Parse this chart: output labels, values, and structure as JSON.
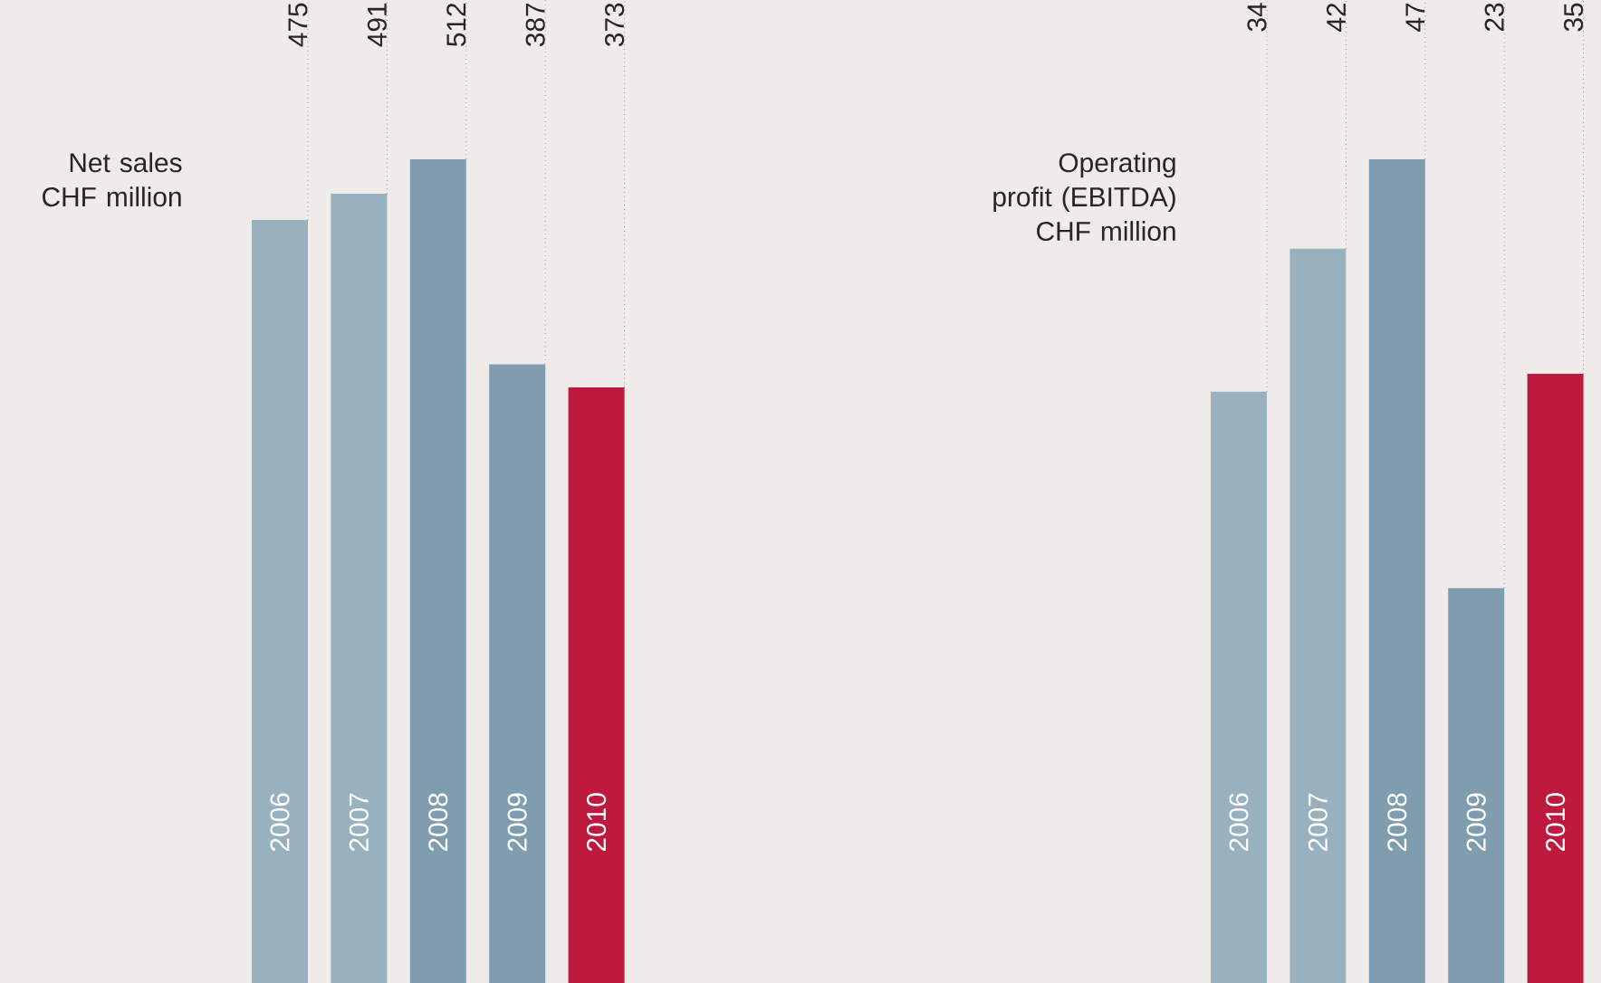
{
  "chart_data": [
    {
      "type": "bar",
      "title": "Net sales",
      "subtitle": "CHF million",
      "categories": [
        "2006",
        "2007",
        "2008",
        "2009",
        "2010"
      ],
      "values": [
        475,
        491,
        512,
        387,
        373
      ],
      "colors": [
        "#97b1be",
        "#97b1be",
        "#7f9dae",
        "#7f9dae",
        "#be1a3e"
      ],
      "data_labels": true
    },
    {
      "type": "bar",
      "title": "Operating profit (EBITDA)",
      "subtitle": "CHF million",
      "categories": [
        "2006",
        "2007",
        "2008",
        "2009",
        "2010"
      ],
      "values": [
        34,
        42,
        47,
        23,
        35
      ],
      "colors": [
        "#97b1be",
        "#97b1be",
        "#7f9dae",
        "#7f9dae",
        "#be1a3e"
      ],
      "data_labels": true
    }
  ]
}
